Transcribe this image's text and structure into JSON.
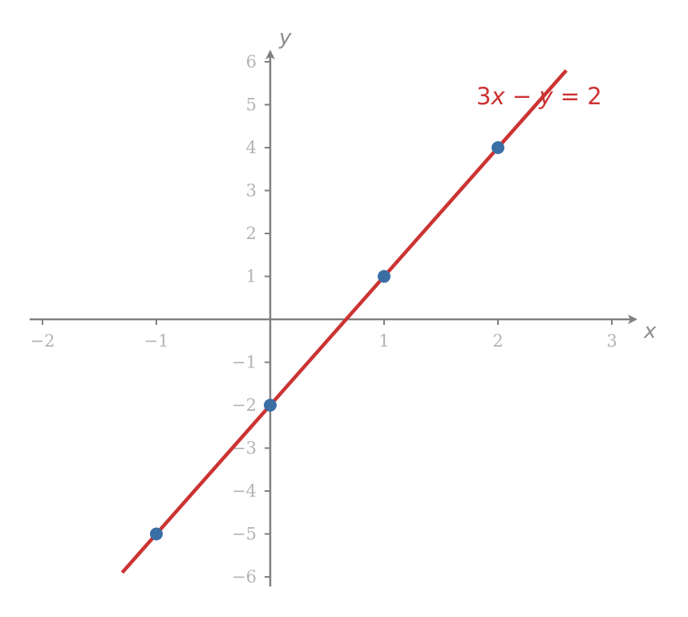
{
  "chart_data": {
    "type": "line",
    "title": "",
    "xlabel": "x",
    "ylabel": "y",
    "xlim": [
      -2.1,
      3.2
    ],
    "ylim": [
      -6.2,
      6.2
    ],
    "x_ticks": [
      -2,
      -1,
      1,
      2,
      3
    ],
    "y_ticks": [
      -6,
      -5,
      -4,
      -3,
      -2,
      -1,
      1,
      2,
      3,
      4,
      5,
      6
    ],
    "x_tick_labels": [
      "−2",
      "−1",
      "1",
      "2",
      "3"
    ],
    "y_tick_labels": [
      "−6",
      "−5",
      "−4",
      "−3",
      "−2",
      "−1",
      "1",
      "2",
      "3",
      "4",
      "5",
      "6"
    ],
    "grid": false,
    "line": {
      "equation": "3x − y = 2",
      "equation_parts": [
        "3",
        "x",
        " − ",
        "y",
        " = 2"
      ],
      "slope": 3,
      "intercept": -2,
      "x_range": [
        -1.3,
        2.6
      ],
      "color": "#cc3333"
    },
    "points": {
      "x": [
        -1,
        0,
        1,
        2
      ],
      "y": [
        -5,
        -2,
        1,
        4
      ],
      "color": "#3a6ea5"
    },
    "colors": {
      "axis": "#808080",
      "tick_label": "#b3b3b3",
      "axis_label": "#8c8c8c"
    }
  }
}
